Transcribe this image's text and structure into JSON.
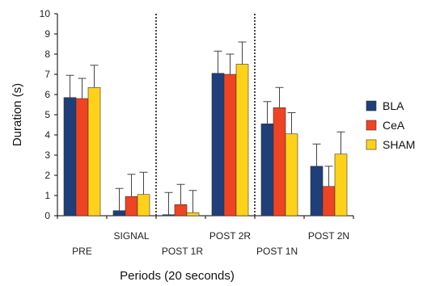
{
  "chart_data": {
    "type": "bar",
    "xlabel": "Periods (20 seconds)",
    "ylabel": "Duration (s)",
    "ylim": [
      0,
      10
    ],
    "yticks": [
      0,
      1,
      2,
      3,
      4,
      5,
      6,
      7,
      8,
      9,
      10
    ],
    "grid": false,
    "legend_position": "right",
    "categories": [
      "PRE",
      "SIGNAL",
      "POST 1R",
      "POST 2R",
      "POST 1N",
      "POST 2N"
    ],
    "series": [
      {
        "name": "BLA",
        "color": "#1f3f7a",
        "values": [
          5.85,
          0.25,
          0.05,
          7.05,
          4.55,
          2.45
        ],
        "errors": [
          1.1,
          1.1,
          1.1,
          1.1,
          1.1,
          1.1
        ]
      },
      {
        "name": "CeA",
        "color": "#ef4423",
        "values": [
          5.8,
          0.95,
          0.55,
          7.0,
          5.35,
          1.45
        ],
        "errors": [
          1.0,
          1.1,
          1.0,
          1.0,
          1.0,
          1.0
        ]
      },
      {
        "name": "SHAM",
        "color": "#ffd21a",
        "values": [
          6.35,
          1.05,
          0.15,
          7.5,
          4.05,
          3.05
        ],
        "errors": [
          1.1,
          1.1,
          1.1,
          1.1,
          1.05,
          1.1
        ]
      }
    ],
    "separators_after_category": [
      1,
      3
    ]
  }
}
